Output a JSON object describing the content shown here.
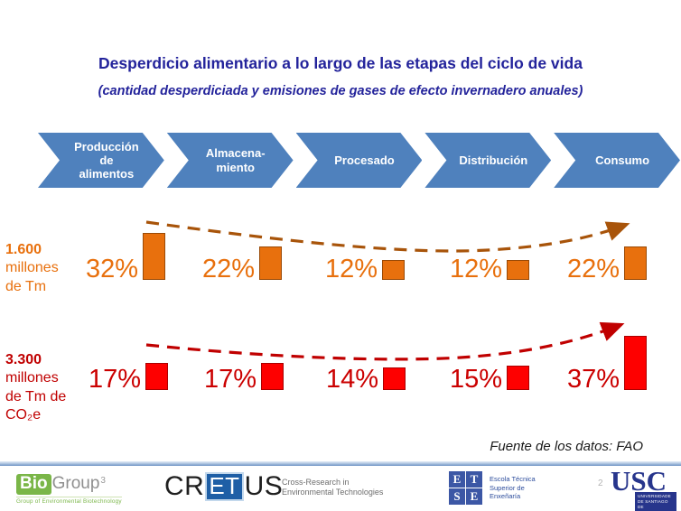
{
  "slide": {
    "title": "Desperdicio alimentario a lo largo de las etapas del ciclo de vida",
    "subtitle": "(cantidad desperdiciada y emisiones de gases de efecto invernadero anuales)",
    "source_note": "Fuente de los datos: FAO",
    "page_number": "2"
  },
  "stages": [
    "Producción\nde\nalimentos",
    "Almacena-\nmiento",
    "Procesado",
    "Distribución",
    "Consumo"
  ],
  "chart_data": {
    "type": "bar",
    "categories": [
      "Producción de alimentos",
      "Almacenamiento",
      "Procesado",
      "Distribución",
      "Consumo"
    ],
    "unit": "%",
    "series": [
      {
        "name": "Cantidad desperdiciada",
        "axis_label_value": "1.600",
        "axis_label_rest": "millones\nde Tm",
        "values": [
          32,
          22,
          12,
          12,
          22
        ],
        "labels": [
          "32%",
          "22%",
          "12%",
          "12%",
          "22%"
        ],
        "color": "#E8700D"
      },
      {
        "name": "Emisiones de gases de efecto invernadero",
        "axis_label_value": "3.300",
        "axis_label_rest": "millones\nde Tm de\nCO₂e",
        "values": [
          17,
          17,
          14,
          15,
          37
        ],
        "labels": [
          "17%",
          "17%",
          "14%",
          "15%",
          "37%"
        ],
        "color": "#FE0000"
      }
    ],
    "annotations": "flecha de tendencia discontinua sobre cada serie",
    "legend_position": "left-row-labels",
    "grid": false
  },
  "footer": {
    "biogroup": {
      "bio": "Bio",
      "group": "Group",
      "sup": "3",
      "tagline": "Group of Environmental Biotechnology"
    },
    "cretus": {
      "cr": "CR",
      "et": "ET",
      "us": "US",
      "tagline_line1": "Cross-Research in",
      "tagline_line2": "Environmental Technologies"
    },
    "etse": {
      "l1": "E",
      "l2": "T",
      "l3": "S",
      "l4": "E",
      "name": "Escola Técnica\nSuperior de\nEnxeñaría"
    },
    "usc": {
      "acronym": "USC",
      "name": "UNIVERSIDADE\nDE SANTIAGO\nDE COMPOSTELA"
    }
  },
  "colors": {
    "navy": "#23239B",
    "chevron-blue": "#4F81BD",
    "orange": "#E8700D",
    "orange-dark": "#A8540A",
    "red": "#FE0000",
    "red-dark": "#C00000",
    "green": "#7AB648",
    "logo-blue": "#2C4C9C"
  }
}
